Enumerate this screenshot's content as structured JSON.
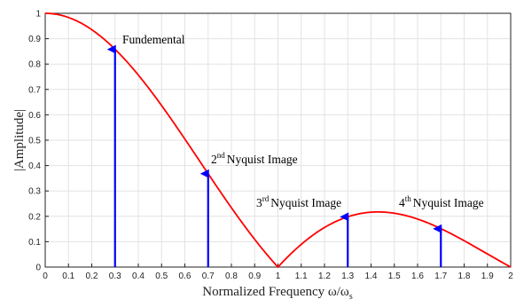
{
  "chart_data": {
    "type": "line",
    "xlabel": "Normalized Frequency ω/ω",
    "xlabel_sub": "s",
    "ylabel": "|Amplitude|",
    "xlim": [
      0,
      2
    ],
    "ylim": [
      0,
      1
    ],
    "grid": true,
    "x_ticks": [
      "0",
      "0.1",
      "0.2",
      "0.3",
      "0.4",
      "0.5",
      "0.6",
      "0.7",
      "0.8",
      "0.9",
      "1",
      "1.1",
      "1.2",
      "1.3",
      "1.4",
      "1.5",
      "1.6",
      "1.7",
      "1.8",
      "1.9",
      "2"
    ],
    "y_ticks": [
      "0",
      "0.1",
      "0.2",
      "0.3",
      "0.4",
      "0.5",
      "0.6",
      "0.7",
      "0.8",
      "0.9",
      "1"
    ],
    "series": [
      {
        "function": "abs_sinc",
        "color": "#ff0000",
        "x": [
          0,
          0.1,
          0.2,
          0.3,
          0.4,
          0.5,
          0.6,
          0.7,
          0.8,
          0.9,
          1.0,
          1.1,
          1.2,
          1.3,
          1.4,
          1.5,
          1.6,
          1.7,
          1.8,
          1.9,
          2.0
        ],
        "y": [
          1.0,
          0.984,
          0.935,
          0.858,
          0.757,
          0.637,
          0.505,
          0.368,
          0.234,
          0.109,
          0.0,
          0.089,
          0.156,
          0.198,
          0.216,
          0.212,
          0.189,
          0.151,
          0.104,
          0.052,
          0.0
        ]
      }
    ],
    "arrows": [
      {
        "x": 0.3,
        "y": 0.858,
        "color": "#0000ff"
      },
      {
        "x": 0.7,
        "y": 0.368,
        "color": "#0000ff"
      },
      {
        "x": 1.3,
        "y": 0.198,
        "color": "#0000ff"
      },
      {
        "x": 1.7,
        "y": 0.151,
        "color": "#0000ff"
      }
    ],
    "annotations": [
      {
        "id": "fund",
        "text": "Fundemental"
      },
      {
        "id": "nyq2",
        "sup": "nd",
        "num": "2",
        "text": "Nyquist Image"
      },
      {
        "id": "nyq3",
        "sup": "rd",
        "num": "3",
        "text": "Nyquist Image"
      },
      {
        "id": "nyq4",
        "sup": "th",
        "num": "4",
        "text": "Nyquist Image"
      }
    ]
  }
}
